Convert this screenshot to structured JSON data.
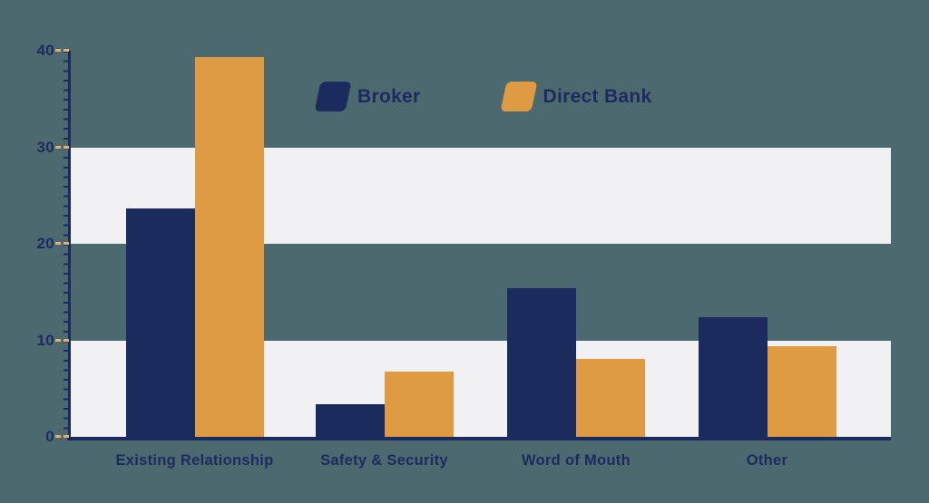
{
  "chart_data": {
    "type": "bar",
    "title": "",
    "xlabel": "",
    "ylabel": "",
    "categories": [
      "Existing Relationship",
      "Safety & Security",
      "Word of Mouth",
      "Other"
    ],
    "series": [
      {
        "name": "Broker",
        "color": "#1c2b5e",
        "values": [
          23.7,
          3.4,
          15.4,
          12.4
        ]
      },
      {
        "name": "Direct Bank",
        "color": "#de9b43",
        "values": [
          39.3,
          6.8,
          8.1,
          9.4
        ]
      }
    ],
    "ylim": [
      0,
      40
    ],
    "yticks": [
      40,
      30,
      20,
      10,
      0
    ],
    "grid_bands": [
      [
        20,
        30
      ],
      [
        0,
        10
      ]
    ],
    "legend_position": "top-center",
    "grid": "horizontal alternating bands, no gridlines"
  },
  "legend": {
    "items": [
      {
        "label": "Broker",
        "swatch_color": "#1c2b5e"
      },
      {
        "label": "Direct Bank",
        "swatch_color": "#de9b43"
      }
    ]
  },
  "colors": {
    "background": "#4d6970",
    "band": "#f1f1f4",
    "navy": "#1c2b5e",
    "orange": "#de9b43",
    "axis": "#1c2b5e",
    "major_tick": "#e5b06e",
    "text": "#1c2b5e"
  }
}
